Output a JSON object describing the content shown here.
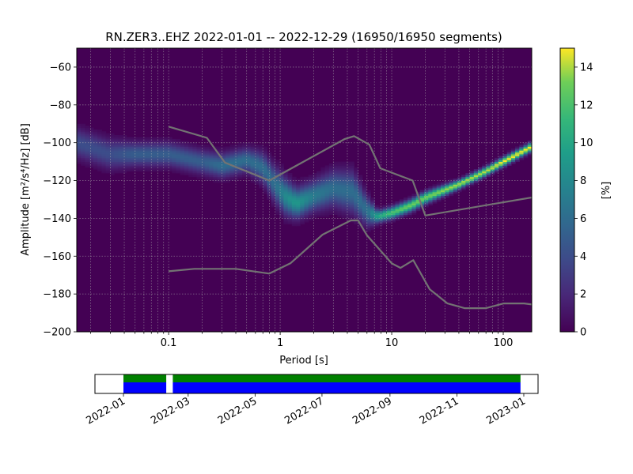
{
  "chart_data": [
    {
      "type": "heatmap",
      "title": "RN.ZER3..EHZ   2022-01-01 -- 2022-12-29  (16950/16950 segments)",
      "xlabel": "Period [s]",
      "ylabel": "Amplitude [m²/s⁴/Hz] [dB]",
      "x_scale": "log",
      "xlim": [
        0.015,
        180
      ],
      "ylim": [
        -200,
        -50
      ],
      "x_ticks": [
        0.1,
        1,
        10,
        100
      ],
      "x_tick_labels": [
        "0.1",
        "1",
        "10",
        "100"
      ],
      "y_ticks": [
        -200,
        -180,
        -160,
        -140,
        -120,
        -100,
        -80,
        -60
      ],
      "y_tick_labels": [
        "−200",
        "−180",
        "−160",
        "−140",
        "−120",
        "−100",
        "−80",
        "−60"
      ],
      "grid": true,
      "colormap": "viridis",
      "colorbar": {
        "label": "[%]",
        "range": [
          0,
          15
        ],
        "ticks": [
          0,
          2,
          4,
          6,
          8,
          10,
          12,
          14
        ],
        "tick_labels": [
          "0",
          "2",
          "4",
          "6",
          "8",
          "10",
          "12",
          "14"
        ]
      },
      "mode_curve": {
        "period": [
          0.015,
          0.03,
          0.05,
          0.1,
          0.2,
          0.3,
          0.5,
          0.7,
          0.9,
          1.1,
          1.4,
          2.0,
          3.0,
          4.5,
          6.0,
          7.5,
          10,
          15,
          20,
          40,
          70,
          100,
          180
        ],
        "amplitude": [
          -100,
          -106,
          -106,
          -106,
          -110,
          -112,
          -109,
          -113,
          -122,
          -128,
          -132,
          -128,
          -124,
          -126,
          -136,
          -139,
          -137,
          -133,
          -129,
          -122,
          -115,
          -110,
          -102
        ],
        "spread_db": [
          5,
          5,
          4,
          4,
          4,
          4,
          4,
          5,
          6,
          6,
          5,
          5,
          6,
          7,
          5,
          2,
          2,
          2,
          2,
          1.5,
          1.5,
          1.5,
          1.5
        ],
        "peak_percent": [
          4,
          4,
          5,
          5,
          5,
          6,
          6,
          6,
          6,
          8,
          9,
          7,
          6,
          6,
          6,
          10,
          12,
          13,
          13,
          14,
          14,
          15,
          15
        ]
      },
      "noise_models": {
        "color": "#737373",
        "high": {
          "period": [
            0.1,
            0.22,
            0.32,
            0.8,
            3.8,
            4.6,
            6.3,
            7.9,
            15.4,
            20,
            354.8
          ],
          "amplitude": [
            -91.5,
            -97.4,
            -110.5,
            -120,
            -98,
            -96.5,
            -101,
            -113.5,
            -120,
            -138.5,
            -126
          ]
        },
        "low": {
          "period": [
            0.1,
            0.17,
            0.4,
            0.8,
            1.24,
            2.4,
            4.3,
            5,
            6,
            10,
            12,
            15.6,
            21.9,
            31.6,
            45,
            70,
            101,
            154,
            328
          ],
          "amplitude": [
            -168,
            -166.7,
            -166.7,
            -169.2,
            -163.7,
            -148.6,
            -141.1,
            -141.1,
            -149,
            -163.8,
            -166.2,
            -162.1,
            -177.5,
            -185,
            -187.5,
            -187.5,
            -185,
            -185,
            -187.5
          ]
        }
      }
    },
    {
      "type": "timeline",
      "x_tick_labels": [
        "2022-01",
        "2022-03",
        "2022-05",
        "2022-07",
        "2022-09",
        "2022-11",
        "2023-01"
      ],
      "x_tick_dates": [
        "2022-01-01",
        "2022-03-01",
        "2022-05-01",
        "2022-07-01",
        "2022-09-01",
        "2022-11-01",
        "2023-01-01"
      ],
      "xlim": [
        "2021-12-06",
        "2023-01-14"
      ],
      "bars": [
        {
          "color": "#0000ff",
          "ranges": [
            [
              "2022-01-01",
              "2022-02-09"
            ],
            [
              "2022-02-15",
              "2022-12-29"
            ]
          ]
        },
        {
          "color": "#008000",
          "ranges": [
            [
              "2022-01-01",
              "2022-02-09"
            ],
            [
              "2022-02-15",
              "2022-12-29"
            ]
          ]
        }
      ]
    }
  ]
}
